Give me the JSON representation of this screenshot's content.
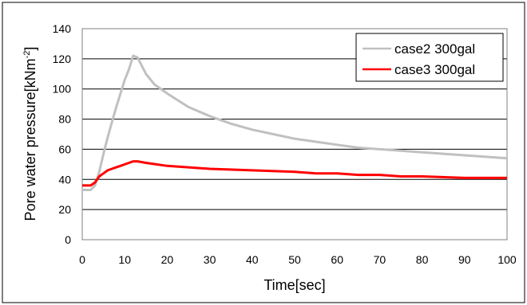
{
  "chart_data": {
    "type": "line",
    "xlabel": "Time[sec]",
    "ylabel_main": "Pore water pressure[kNm",
    "ylabel_sup": "-2",
    "ylabel_close": "]",
    "xlim": [
      0,
      100
    ],
    "ylim": [
      0,
      140
    ],
    "xticks": [
      "0",
      "10",
      "20",
      "30",
      "40",
      "50",
      "60",
      "70",
      "80",
      "90",
      "100"
    ],
    "yticks": [
      "0",
      "20",
      "40",
      "60",
      "80",
      "100",
      "120",
      "140"
    ],
    "grid": true,
    "legend_position": "top-right",
    "series": [
      {
        "name": "case2 300gal",
        "color": "#c0c0c0",
        "x": [
          0,
          2,
          3,
          4,
          5,
          6,
          7,
          8,
          9,
          10,
          11,
          12,
          13,
          15,
          17,
          20,
          25,
          30,
          35,
          40,
          45,
          50,
          55,
          60,
          65,
          70,
          75,
          80,
          85,
          90,
          95,
          100
        ],
        "y": [
          33,
          33,
          36,
          45,
          57,
          68,
          78,
          88,
          97,
          106,
          113,
          122,
          121,
          110,
          103,
          97,
          88,
          82,
          77,
          73,
          70,
          67,
          65,
          63,
          61,
          60,
          59,
          58,
          57,
          56,
          55,
          54
        ]
      },
      {
        "name": "case3 300gal",
        "color": "#ff0000",
        "x": [
          0,
          2,
          3,
          4,
          5,
          6,
          7,
          8,
          9,
          10,
          11,
          12,
          13,
          15,
          20,
          25,
          30,
          40,
          50,
          55,
          60,
          65,
          70,
          75,
          80,
          90,
          100
        ],
        "y": [
          36,
          36,
          38,
          42,
          44,
          46,
          47,
          48,
          49,
          50,
          51,
          52,
          52,
          51,
          49,
          48,
          47,
          46,
          45,
          44,
          44,
          43,
          43,
          42,
          42,
          41,
          41
        ]
      }
    ]
  }
}
